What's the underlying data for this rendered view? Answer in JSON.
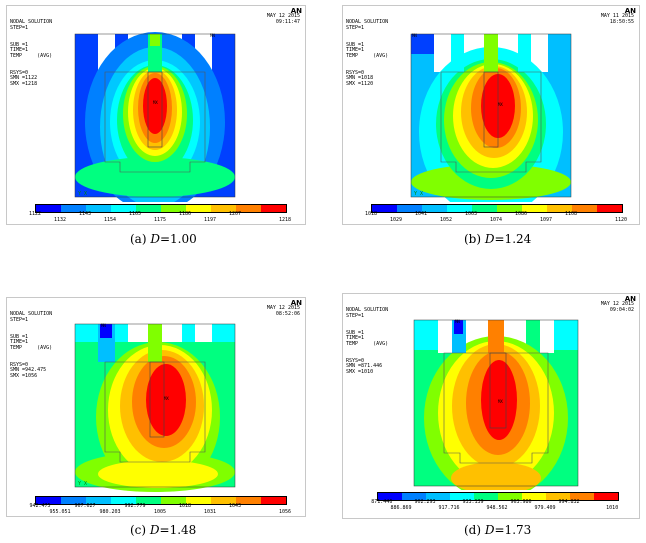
{
  "colormap": [
    "#0000ff",
    "#0080ff",
    "#00bfff",
    "#00ffff",
    "#00ff80",
    "#80ff00",
    "#ffff00",
    "#ffc000",
    "#ff8000",
    "#ff0000"
  ],
  "panels": [
    {
      "header": [
        "NODAL SOLUTION",
        "",
        "STEP=1",
        "SUB =1",
        "TIME=1",
        "TEMP     (AVG)",
        "RSYS=0",
        "SMN =1122",
        "SMX =1218"
      ],
      "date": "MAY 12 2015",
      "time": "09:11:47",
      "logo": "AN",
      "mx_label": "MX",
      "mn_label": "MN",
      "axes_label": "Y  X",
      "ticks_top": [
        "1122",
        "1143",
        "1165",
        "1186",
        "1207"
      ],
      "ticks_bottom": [
        "1132",
        "1154",
        "1175",
        "1197",
        "1218"
      ],
      "caption_letter": "(a)",
      "caption_var": "D",
      "caption_value": "=1.00"
    },
    {
      "header": [
        "NODAL SOLUTION",
        "",
        "STEP=1",
        "SUB =1",
        "TIME=1",
        "TEMP     (AVG)",
        "RSYS=0",
        "SMN =1018",
        "SMX =1120"
      ],
      "date": "MAY 11 2015",
      "time": "18:50:55",
      "logo": "AN",
      "mx_label": "MX",
      "mn_label": "MN",
      "axes_label": "Y  X",
      "ticks_top": [
        "1018",
        "1041",
        "1063",
        "1086",
        "1108"
      ],
      "ticks_bottom": [
        "1029",
        "1052",
        "1074",
        "1097",
        "1120"
      ],
      "caption_letter": "(b)",
      "caption_var": "D",
      "caption_value": "=1.24"
    },
    {
      "header": [
        "NODAL SOLUTION",
        "",
        "STEP=1",
        "SUB =1",
        "TIME=1",
        "TEMP     (AVG)",
        "RSYS=0",
        "SMN =942.475",
        "SMX =1056"
      ],
      "date": "MAY 12 2015",
      "time": "08:52:06",
      "logo": "AN",
      "mx_label": "MX",
      "mn_label": "MN",
      "axes_label": "Y  X",
      "ticks_top": [
        "942.475",
        "967.627",
        "992.779",
        "1018",
        "1043"
      ],
      "ticks_bottom": [
        "955.051",
        "980.203",
        "1005",
        "1031",
        "1056"
      ],
      "caption_letter": "(c)",
      "caption_var": "D",
      "caption_value": "=1.48"
    },
    {
      "header": [
        "NODAL SOLUTION",
        "",
        "STEP=1",
        "SUB =1",
        "TIME=1",
        "TEMP     (AVG)",
        "RSYS=0",
        "SMN =871.446",
        "SMX =1010"
      ],
      "date": "MAY 12 2015",
      "time": "09:04:02",
      "logo": "AN",
      "mx_label": "MX",
      "mn_label": "MN",
      "axes_label": "Y  X",
      "ticks_top": [
        "871.446",
        "902.293",
        "933.139",
        "963.986",
        "994.832"
      ],
      "ticks_bottom": [
        "886.869",
        "917.716",
        "948.562",
        "979.409",
        "1010"
      ],
      "caption_letter": "(d)",
      "caption_var": "D",
      "caption_value": "=1.73"
    }
  ]
}
